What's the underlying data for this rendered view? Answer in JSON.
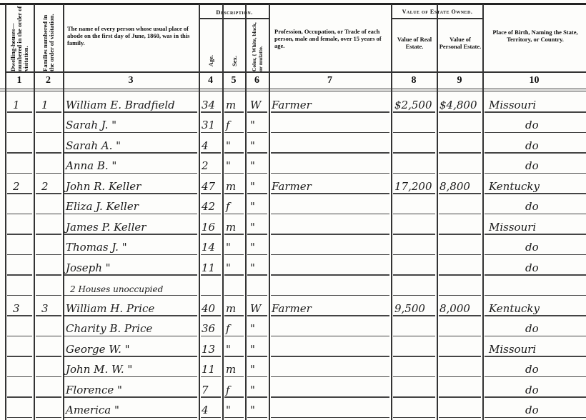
{
  "header": {
    "col1": "Dwelling-houses— numbered in the order of visitation.",
    "col2": "Families numbered in the order of visitation.",
    "col3": "The name of every person whose usual place of abode on the first day of June, 1860, was in this family.",
    "description": "Description.",
    "col4": "Age.",
    "col5": "Sex.",
    "col6": "Color, { White, black, or mulatto.",
    "col7": "Profession, Occupation, or Trade of each person, male and female, over 15 years of age.",
    "estate": "Value of Estate Owned.",
    "col8": "Value of Real Estate.",
    "col9": "Value of Personal Estate.",
    "col10": "Place of Birth, Naming the State, Territory, or Country.",
    "numbers": [
      "1",
      "2",
      "3",
      "4",
      "5",
      "6",
      "7",
      "8",
      "9",
      "10"
    ]
  },
  "rows": [
    {
      "dwelling": "1",
      "family": "1",
      "name": "William E. Bradfield",
      "age": "34",
      "sex": "m",
      "color": "W",
      "occupation": "Farmer",
      "real": "$2,500",
      "personal": "$4,800",
      "birth": "Missouri"
    },
    {
      "dwelling": "",
      "family": "",
      "name": "Sarah J.     \"",
      "age": "31",
      "sex": "f",
      "color": "\"",
      "occupation": "",
      "real": "",
      "personal": "",
      "birth": "do"
    },
    {
      "dwelling": "",
      "family": "",
      "name": "Sarah A.     \"",
      "age": "4",
      "sex": "\"",
      "color": "\"",
      "occupation": "",
      "real": "",
      "personal": "",
      "birth": "do"
    },
    {
      "dwelling": "",
      "family": "",
      "name": "Anna B.     \"",
      "age": "2",
      "sex": "\"",
      "color": "\"",
      "occupation": "",
      "real": "",
      "personal": "",
      "birth": "do"
    },
    {
      "dwelling": "2",
      "family": "2",
      "name": "John R. Keller",
      "age": "47",
      "sex": "m",
      "color": "\"",
      "occupation": "Farmer",
      "real": "17,200",
      "personal": "8,800",
      "birth": "Kentucky"
    },
    {
      "dwelling": "",
      "family": "",
      "name": "Eliza J. Keller",
      "age": "42",
      "sex": "f",
      "color": "\"",
      "occupation": "",
      "real": "",
      "personal": "",
      "birth": "do"
    },
    {
      "dwelling": "",
      "family": "",
      "name": "James P. Keller",
      "age": "16",
      "sex": "m",
      "color": "\"",
      "occupation": "",
      "real": "",
      "personal": "",
      "birth": "Missouri"
    },
    {
      "dwelling": "",
      "family": "",
      "name": "Thomas J.     \"",
      "age": "14",
      "sex": "\"",
      "color": "\"",
      "occupation": "",
      "real": "",
      "personal": "",
      "birth": "do"
    },
    {
      "dwelling": "",
      "family": "",
      "name": "Joseph     \"",
      "age": "11",
      "sex": "\"",
      "color": "\"",
      "occupation": "",
      "real": "",
      "personal": "",
      "birth": "do"
    },
    {
      "dwelling": "",
      "family": "",
      "name": "2 Houses unoccupied",
      "age": "",
      "sex": "",
      "color": "",
      "occupation": "",
      "real": "",
      "personal": "",
      "birth": ""
    },
    {
      "dwelling": "3",
      "family": "3",
      "name": "William H. Price",
      "age": "40",
      "sex": "m",
      "color": "W",
      "occupation": "Farmer",
      "real": "9,500",
      "personal": "8,000",
      "birth": "Kentucky"
    },
    {
      "dwelling": "",
      "family": "",
      "name": "Charity B. Price",
      "age": "36",
      "sex": "f",
      "color": "\"",
      "occupation": "",
      "real": "",
      "personal": "",
      "birth": "do"
    },
    {
      "dwelling": "",
      "family": "",
      "name": "George W.     \"",
      "age": "13",
      "sex": "\"",
      "color": "\"",
      "occupation": "",
      "real": "",
      "personal": "",
      "birth": "Missouri"
    },
    {
      "dwelling": "",
      "family": "",
      "name": "John M. W.     \"",
      "age": "11",
      "sex": "m",
      "color": "\"",
      "occupation": "",
      "real": "",
      "personal": "",
      "birth": "do"
    },
    {
      "dwelling": "",
      "family": "",
      "name": "Florence     \"",
      "age": "7",
      "sex": "f",
      "color": "\"",
      "occupation": "",
      "real": "",
      "personal": "",
      "birth": "do"
    },
    {
      "dwelling": "",
      "family": "",
      "name": "America     \"",
      "age": "4",
      "sex": "\"",
      "color": "\"",
      "occupation": "",
      "real": "",
      "personal": "",
      "birth": "do"
    }
  ]
}
